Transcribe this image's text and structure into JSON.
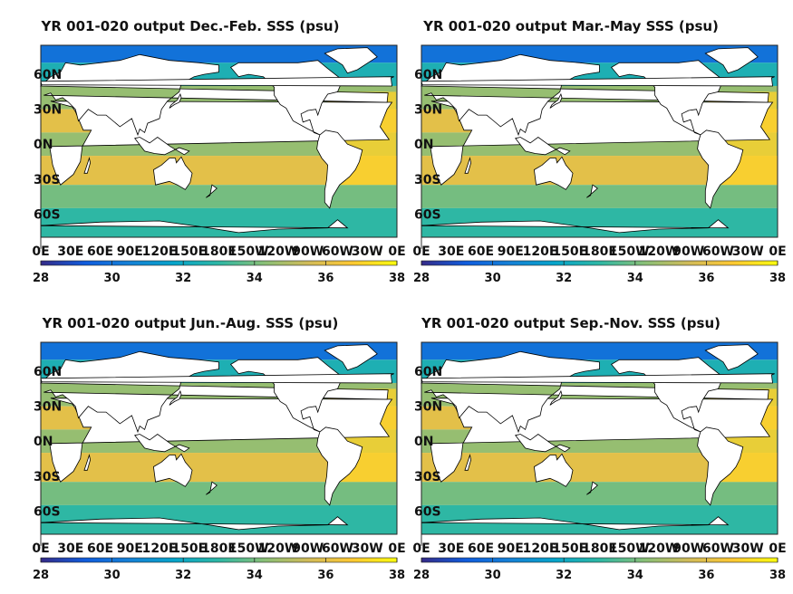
{
  "chart_data": [
    {
      "type": "heatmap",
      "title": "YR 001-020 output Dec.-Feb. SSS (psu)",
      "xticks": [
        "0E",
        "30E",
        "60E",
        "90E",
        "120E",
        "150E",
        "180E",
        "150W",
        "120W",
        "90W",
        "60W",
        "30W",
        "0E"
      ],
      "yticks": [
        "60N",
        "30N",
        "0N",
        "30S",
        "60S"
      ],
      "colorbar": {
        "ticks": [
          "28",
          "30",
          "32",
          "34",
          "36",
          "38"
        ],
        "range": [
          28,
          38
        ]
      },
      "colormap": [
        "#352a87",
        "#0f5cdd",
        "#1481d6",
        "#06a4ca",
        "#2eb7a4",
        "#87bf77",
        "#d1bb59",
        "#fec832",
        "#f9fb0e"
      ],
      "land_color": "#ffffff",
      "season_sss": {
        "tropical_atlantic": 37,
        "subtropical_pacific": 36,
        "southern_ocean": 34,
        "equatorial": 34.5,
        "arctic": 30
      }
    },
    {
      "type": "heatmap",
      "title": "YR 001-020 output Mar.-May SSS (psu)",
      "xticks": [
        "0E",
        "30E",
        "60E",
        "90E",
        "120E",
        "150E",
        "180E",
        "150W",
        "120W",
        "90W",
        "60W",
        "30W",
        "0E"
      ],
      "yticks": [
        "60N",
        "30N",
        "0N",
        "30S",
        "60S"
      ],
      "colorbar": {
        "ticks": [
          "28",
          "30",
          "32",
          "34",
          "36",
          "38"
        ],
        "range": [
          28,
          38
        ]
      },
      "colormap": [
        "#352a87",
        "#0f5cdd",
        "#1481d6",
        "#06a4ca",
        "#2eb7a4",
        "#87bf77",
        "#d1bb59",
        "#fec832",
        "#f9fb0e"
      ],
      "land_color": "#ffffff",
      "season_sss": {
        "tropical_atlantic": 37,
        "subtropical_pacific": 36,
        "southern_ocean": 34,
        "equatorial": 34.5,
        "arctic": 30
      }
    },
    {
      "type": "heatmap",
      "title": "YR 001-020 output Jun.-Aug. SSS (psu)",
      "xticks": [
        "0E",
        "30E",
        "60E",
        "90E",
        "120E",
        "150E",
        "180E",
        "150W",
        "120W",
        "90W",
        "60W",
        "30W",
        "0E"
      ],
      "yticks": [
        "60N",
        "30N",
        "0N",
        "30S",
        "60S"
      ],
      "colorbar": {
        "ticks": [
          "28",
          "30",
          "32",
          "34",
          "36",
          "38"
        ],
        "range": [
          28,
          38
        ]
      },
      "colormap": [
        "#352a87",
        "#0f5cdd",
        "#1481d6",
        "#06a4ca",
        "#2eb7a4",
        "#87bf77",
        "#d1bb59",
        "#fec832",
        "#f9fb0e"
      ],
      "land_color": "#ffffff",
      "season_sss": {
        "tropical_atlantic": 37,
        "subtropical_pacific": 36,
        "southern_ocean": 34,
        "equatorial": 34.5,
        "arctic": 30
      }
    },
    {
      "type": "heatmap",
      "title": "YR 001-020 output Sep.-Nov. SSS (psu)",
      "xticks": [
        "0E",
        "30E",
        "60E",
        "90E",
        "120E",
        "150E",
        "180E",
        "150W",
        "120W",
        "90W",
        "60W",
        "30W",
        "0E"
      ],
      "yticks": [
        "60N",
        "30N",
        "0N",
        "30S",
        "60S"
      ],
      "colorbar": {
        "ticks": [
          "28",
          "30",
          "32",
          "34",
          "36",
          "38"
        ],
        "range": [
          28,
          38
        ]
      },
      "colormap": [
        "#352a87",
        "#0f5cdd",
        "#1481d6",
        "#06a4ca",
        "#2eb7a4",
        "#87bf77",
        "#d1bb59",
        "#fec832",
        "#f9fb0e"
      ],
      "land_color": "#ffffff",
      "season_sss": {
        "tropical_atlantic": 37,
        "subtropical_pacific": 36,
        "southern_ocean": 34,
        "equatorial": 34.5,
        "arctic": 30
      }
    }
  ]
}
